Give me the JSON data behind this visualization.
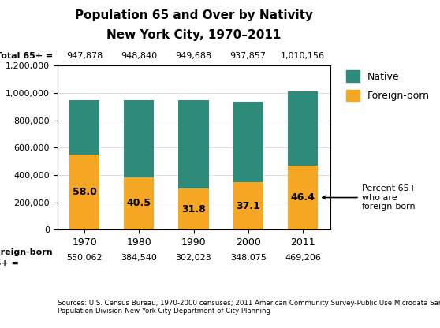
{
  "title_line1": "Population 65 and Over by Nativity",
  "title_line2": "New York City, 1970–2011",
  "years": [
    "1970",
    "1980",
    "1990",
    "2000",
    "2011"
  ],
  "foreign_born": [
    550062,
    384540,
    302023,
    348075,
    469206
  ],
  "total": [
    947878,
    948840,
    949688,
    937857,
    1010156
  ],
  "percentages": [
    "58.0",
    "40.5",
    "31.8",
    "37.1",
    "46.4"
  ],
  "total_labels": [
    "947,878",
    "948,840",
    "949,688",
    "937,857",
    "1,010,156"
  ],
  "foreign_born_labels": [
    "550,062",
    "384,540",
    "302,023",
    "348,075",
    "469,206"
  ],
  "color_foreign": "#F5A623",
  "color_native": "#2E8B7A",
  "ylim": [
    0,
    1200000
  ],
  "yticks": [
    0,
    200000,
    400000,
    600000,
    800000,
    1000000,
    1200000
  ],
  "source_text": "Sources: U.S. Census Bureau, 1970-2000 censuses; 2011 American Community Survey-Public Use Microdata Sample\nPopulation Division-New York City Department of City Planning",
  "legend_native": "Native",
  "legend_foreign": "Foreign-born",
  "arrow_label": "Percent 65+\nwho are\nforeign-born"
}
